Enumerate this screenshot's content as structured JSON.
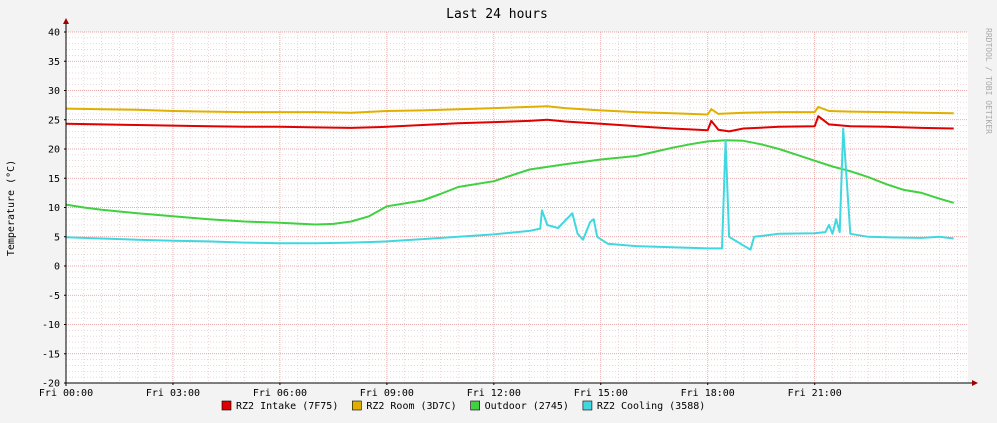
{
  "chart_data": {
    "type": "line",
    "title": "Last 24 hours",
    "ylabel": "Temperature (°C)",
    "watermark": "RRDTOOL / TOBI OETIKER",
    "ylim": [
      -20,
      40
    ],
    "xlim_hours": [
      0,
      25.3
    ],
    "y_ticks": [
      40,
      35,
      30,
      25,
      20,
      15,
      10,
      5,
      0,
      -5,
      -10,
      -15,
      -20
    ],
    "x_ticks": [
      {
        "hour": 0,
        "label": "Fri 00:00"
      },
      {
        "hour": 3,
        "label": "Fri 03:00"
      },
      {
        "hour": 6,
        "label": "Fri 06:00"
      },
      {
        "hour": 9,
        "label": "Fri 09:00"
      },
      {
        "hour": 12,
        "label": "Fri 12:00"
      },
      {
        "hour": 15,
        "label": "Fri 15:00"
      },
      {
        "hour": 18,
        "label": "Fri 18:00"
      },
      {
        "hour": 21,
        "label": "Fri 21:00"
      }
    ],
    "grid": true,
    "legend_position": "bottom",
    "series": [
      {
        "name": "RZ2 Intake (7F75)",
        "color": "#e00000",
        "points": [
          [
            0,
            24.3
          ],
          [
            1,
            24.2
          ],
          [
            2,
            24.1
          ],
          [
            3,
            24.0
          ],
          [
            4,
            23.9
          ],
          [
            5,
            23.8
          ],
          [
            6,
            23.8
          ],
          [
            7,
            23.7
          ],
          [
            8,
            23.6
          ],
          [
            9,
            23.8
          ],
          [
            10,
            24.1
          ],
          [
            11,
            24.4
          ],
          [
            12,
            24.6
          ],
          [
            13,
            24.8
          ],
          [
            13.5,
            25.0
          ],
          [
            14,
            24.7
          ],
          [
            15,
            24.3
          ],
          [
            16,
            23.9
          ],
          [
            17,
            23.5
          ],
          [
            18,
            23.2
          ],
          [
            18.1,
            24.8
          ],
          [
            18.3,
            23.3
          ],
          [
            18.6,
            23.0
          ],
          [
            19,
            23.5
          ],
          [
            20,
            23.8
          ],
          [
            21,
            23.9
          ],
          [
            21.1,
            25.6
          ],
          [
            21.4,
            24.2
          ],
          [
            22,
            23.9
          ],
          [
            23,
            23.8
          ],
          [
            24,
            23.6
          ],
          [
            24.9,
            23.5
          ]
        ]
      },
      {
        "name": "RZ2 Room (3D7C)",
        "color": "#e0b000",
        "points": [
          [
            0,
            26.9
          ],
          [
            1,
            26.8
          ],
          [
            2,
            26.7
          ],
          [
            3,
            26.5
          ],
          [
            4,
            26.4
          ],
          [
            5,
            26.3
          ],
          [
            6,
            26.3
          ],
          [
            7,
            26.3
          ],
          [
            8,
            26.2
          ],
          [
            9,
            26.5
          ],
          [
            10,
            26.6
          ],
          [
            11,
            26.8
          ],
          [
            12,
            27.0
          ],
          [
            13,
            27.2
          ],
          [
            13.5,
            27.3
          ],
          [
            14,
            27.0
          ],
          [
            15,
            26.6
          ],
          [
            16,
            26.3
          ],
          [
            17,
            26.1
          ],
          [
            18,
            25.9
          ],
          [
            18.1,
            26.8
          ],
          [
            18.3,
            26.0
          ],
          [
            19,
            26.2
          ],
          [
            20,
            26.3
          ],
          [
            21,
            26.3
          ],
          [
            21.1,
            27.2
          ],
          [
            21.4,
            26.5
          ],
          [
            22,
            26.4
          ],
          [
            23,
            26.3
          ],
          [
            24,
            26.2
          ],
          [
            24.9,
            26.1
          ]
        ]
      },
      {
        "name": "Outdoor (2745)",
        "color": "#40d040",
        "points": [
          [
            0,
            10.5
          ],
          [
            0.5,
            10.0
          ],
          [
            1,
            9.6
          ],
          [
            2,
            9.0
          ],
          [
            3,
            8.5
          ],
          [
            4,
            8.0
          ],
          [
            5,
            7.6
          ],
          [
            6,
            7.4
          ],
          [
            7,
            7.1
          ],
          [
            7.5,
            7.2
          ],
          [
            8,
            7.6
          ],
          [
            8.5,
            8.5
          ],
          [
            9,
            10.2
          ],
          [
            10,
            11.2
          ],
          [
            10.5,
            12.3
          ],
          [
            11,
            13.5
          ],
          [
            12,
            14.5
          ],
          [
            12.5,
            15.5
          ],
          [
            13,
            16.5
          ],
          [
            14,
            17.4
          ],
          [
            15,
            18.2
          ],
          [
            16,
            18.8
          ],
          [
            16.5,
            19.5
          ],
          [
            17,
            20.2
          ],
          [
            17.5,
            20.8
          ],
          [
            18,
            21.3
          ],
          [
            18.5,
            21.5
          ],
          [
            19,
            21.4
          ],
          [
            19.5,
            20.8
          ],
          [
            20,
            20.0
          ],
          [
            20.5,
            19.0
          ],
          [
            21,
            18.0
          ],
          [
            21.5,
            17.0
          ],
          [
            22,
            16.2
          ],
          [
            22.5,
            15.2
          ],
          [
            23,
            14.0
          ],
          [
            23.5,
            13.0
          ],
          [
            24,
            12.5
          ],
          [
            24.5,
            11.5
          ],
          [
            24.9,
            10.8
          ]
        ]
      },
      {
        "name": "RZ2 Cooling (3588)",
        "color": "#40d8e0",
        "points": [
          [
            0,
            4.9
          ],
          [
            1,
            4.7
          ],
          [
            2,
            4.5
          ],
          [
            3,
            4.3
          ],
          [
            4,
            4.2
          ],
          [
            5,
            4.0
          ],
          [
            6,
            3.9
          ],
          [
            7,
            3.9
          ],
          [
            8,
            4.0
          ],
          [
            9,
            4.2
          ],
          [
            10,
            4.6
          ],
          [
            11,
            5.0
          ],
          [
            12,
            5.4
          ],
          [
            13,
            6.0
          ],
          [
            13.3,
            6.4
          ],
          [
            13.35,
            9.5
          ],
          [
            13.5,
            7.0
          ],
          [
            13.8,
            6.5
          ],
          [
            14.2,
            9.0
          ],
          [
            14.35,
            5.5
          ],
          [
            14.5,
            4.5
          ],
          [
            14.7,
            7.5
          ],
          [
            14.8,
            8.0
          ],
          [
            14.9,
            5.0
          ],
          [
            15.2,
            3.8
          ],
          [
            16,
            3.4
          ],
          [
            17,
            3.2
          ],
          [
            18,
            3.0
          ],
          [
            18.4,
            3.0
          ],
          [
            18.5,
            21.5
          ],
          [
            18.6,
            5.0
          ],
          [
            19,
            3.5
          ],
          [
            19.2,
            2.8
          ],
          [
            19.3,
            5.0
          ],
          [
            20,
            5.5
          ],
          [
            21,
            5.6
          ],
          [
            21.3,
            5.8
          ],
          [
            21.4,
            7.0
          ],
          [
            21.5,
            5.5
          ],
          [
            21.6,
            8.0
          ],
          [
            21.7,
            5.8
          ],
          [
            21.8,
            23.5
          ],
          [
            21.9,
            14.5
          ],
          [
            22,
            5.5
          ],
          [
            22.5,
            5.0
          ],
          [
            23,
            4.9
          ],
          [
            24,
            4.8
          ],
          [
            24.5,
            5.0
          ],
          [
            24.9,
            4.7
          ]
        ]
      }
    ]
  }
}
